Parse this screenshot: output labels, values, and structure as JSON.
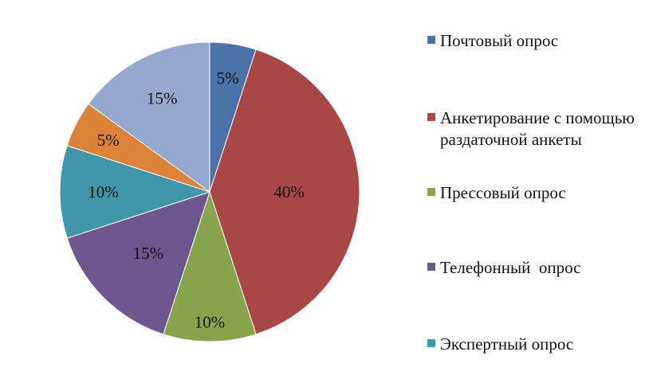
{
  "chart_data": {
    "type": "pie",
    "slices": [
      {
        "label": "Почтовый опрос",
        "value": 5,
        "display": "5%",
        "color": "#4A72A8"
      },
      {
        "label": "Анкетирование с помощью раздаточной анкеты",
        "value": 40,
        "display": "40%",
        "color": "#A84744"
      },
      {
        "label": "Прессовый опрос",
        "value": 10,
        "display": "10%",
        "color": "#87A44C"
      },
      {
        "label": "Телефонный  опрос",
        "value": 15,
        "display": "15%",
        "color": "#6E568F"
      },
      {
        "label": "Экспертный опрос",
        "value": 10,
        "display": "10%",
        "color": "#4196AC"
      },
      {
        "label": "",
        "value": 5,
        "display": "5%",
        "color": "#DC833A"
      },
      {
        "label": "",
        "value": 15,
        "display": "15%",
        "color": "#95A9CF"
      }
    ],
    "legend_position": "right"
  }
}
